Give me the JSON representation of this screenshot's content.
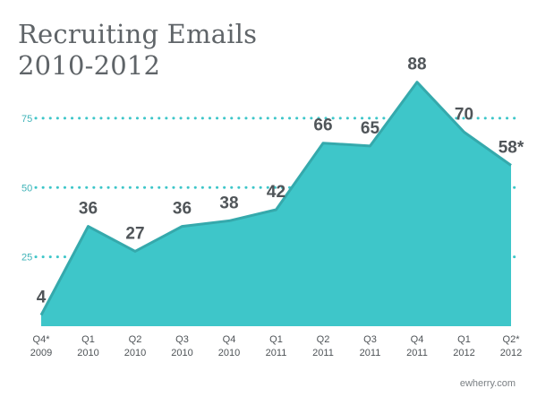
{
  "title": [
    "Recruiting Emails",
    "2010-2012"
  ],
  "credit": "ewherry.com",
  "colors": {
    "area": "#3ec6c9",
    "area_edge": "#35a9ac",
    "gridline": "#3ec6c9",
    "tick_text": "#3fb3b8",
    "value_label": "#505559",
    "axis_text": "#4e5357",
    "title": "#5f6468"
  },
  "chart_data": {
    "type": "area",
    "title": "Recruiting Emails 2010-2012",
    "categories": [
      [
        "Q4*",
        "2009"
      ],
      [
        "Q1",
        "2010"
      ],
      [
        "Q2",
        "2010"
      ],
      [
        "Q3",
        "2010"
      ],
      [
        "Q4",
        "2010"
      ],
      [
        "Q1",
        "2011"
      ],
      [
        "Q2",
        "2011"
      ],
      [
        "Q3",
        "2011"
      ],
      [
        "Q4",
        "2011"
      ],
      [
        "Q1",
        "2012"
      ],
      [
        "Q2*",
        "2012"
      ]
    ],
    "values": [
      4,
      36,
      27,
      36,
      38,
      42,
      66,
      65,
      88,
      70,
      58
    ],
    "value_labels": [
      "4",
      "36",
      "27",
      "36",
      "38",
      "42",
      "66",
      "65",
      "88",
      "70",
      "58*"
    ],
    "yticks": [
      25,
      50,
      75
    ],
    "ylim": [
      0,
      95
    ],
    "grid": "dotted horizontal at y ticks",
    "legend": "none"
  }
}
